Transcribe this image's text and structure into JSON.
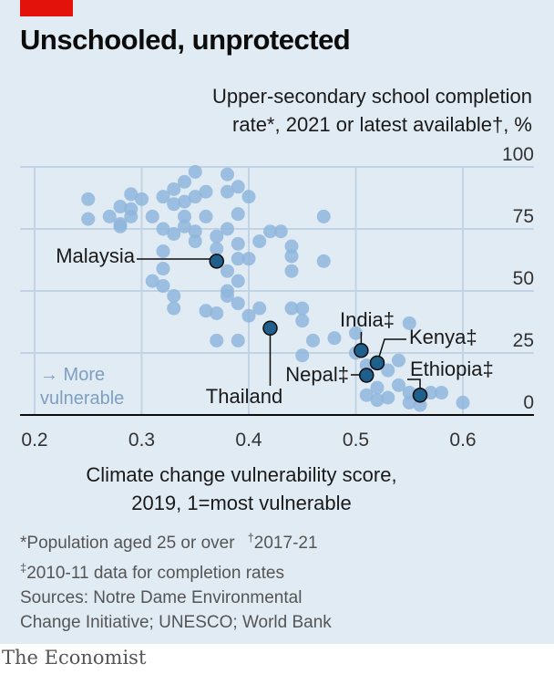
{
  "title": "Unschooled, unprotected",
  "accent_color": "#e3120b",
  "background_color": "#e1ebf4",
  "chart_data": {
    "type": "scatter",
    "title": "Unschooled, unprotected",
    "ylabel": "Upper-secondary school completion rate*, 2021 or latest available†, %",
    "xlabel": "Climate change vulnerability score, 2019, 1=most vulnerable",
    "xlim": [
      0.2,
      0.65
    ],
    "ylim": [
      0,
      100
    ],
    "x_ticks": [
      "0.2",
      "0.3",
      "0.4",
      "0.5",
      "0.6"
    ],
    "y_ticks": [
      "0",
      "25",
      "50",
      "75",
      "100"
    ],
    "grid": true,
    "annotation": "→ More vulnerable",
    "point_color": "#8fb6dc",
    "highlight_color": "#1f5f8b",
    "points": [
      [
        0.25,
        87
      ],
      [
        0.25,
        79
      ],
      [
        0.27,
        80
      ],
      [
        0.28,
        77
      ],
      [
        0.28,
        76
      ],
      [
        0.28,
        84
      ],
      [
        0.29,
        80
      ],
      [
        0.29,
        89
      ],
      [
        0.29,
        83
      ],
      [
        0.31,
        80
      ],
      [
        0.32,
        88
      ],
      [
        0.32,
        75
      ],
      [
        0.33,
        91
      ],
      [
        0.33,
        85
      ],
      [
        0.34,
        94
      ],
      [
        0.34,
        86
      ],
      [
        0.34,
        80
      ],
      [
        0.35,
        98
      ],
      [
        0.35,
        88
      ],
      [
        0.36,
        90
      ],
      [
        0.36,
        80
      ],
      [
        0.31,
        54
      ],
      [
        0.32,
        66
      ],
      [
        0.32,
        59
      ],
      [
        0.32,
        52
      ],
      [
        0.33,
        73
      ],
      [
        0.33,
        48
      ],
      [
        0.33,
        43
      ],
      [
        0.34,
        76
      ],
      [
        0.35,
        70
      ],
      [
        0.35,
        74
      ],
      [
        0.36,
        42
      ],
      [
        0.37,
        72
      ],
      [
        0.37,
        67
      ],
      [
        0.37,
        41
      ],
      [
        0.38,
        97
      ],
      [
        0.38,
        90
      ],
      [
        0.38,
        75
      ],
      [
        0.38,
        58
      ],
      [
        0.39,
        92
      ],
      [
        0.39,
        81
      ],
      [
        0.39,
        69
      ],
      [
        0.39,
        63
      ],
      [
        0.39,
        54
      ],
      [
        0.4,
        88
      ],
      [
        0.4,
        63
      ],
      [
        0.41,
        70
      ],
      [
        0.42,
        74
      ],
      [
        0.43,
        74
      ],
      [
        0.44,
        64
      ],
      [
        0.44,
        58
      ],
      [
        0.44,
        68
      ],
      [
        0.44,
        43
      ],
      [
        0.45,
        43
      ],
      [
        0.45,
        38
      ],
      [
        0.45,
        24
      ],
      [
        0.46,
        30
      ],
      [
        0.47,
        80
      ],
      [
        0.47,
        62
      ],
      [
        0.37,
        30
      ],
      [
        0.38,
        50
      ],
      [
        0.38,
        48
      ],
      [
        0.39,
        45
      ],
      [
        0.39,
        30
      ],
      [
        0.4,
        40
      ],
      [
        0.41,
        43
      ],
      [
        0.48,
        31
      ],
      [
        0.5,
        33
      ],
      [
        0.5,
        25
      ],
      [
        0.51,
        20
      ],
      [
        0.51,
        8
      ],
      [
        0.52,
        11
      ],
      [
        0.52,
        6
      ],
      [
        0.53,
        18
      ],
      [
        0.53,
        7
      ],
      [
        0.54,
        22
      ],
      [
        0.54,
        12
      ],
      [
        0.55,
        37
      ],
      [
        0.55,
        5
      ],
      [
        0.55,
        9
      ],
      [
        0.56,
        4
      ],
      [
        0.57,
        9
      ],
      [
        0.58,
        9
      ],
      [
        0.6,
        5
      ],
      [
        0.3,
        87
      ]
    ],
    "labeled_points": [
      {
        "label": "Malaysia",
        "x": 0.37,
        "y": 62
      },
      {
        "label": "Thailand",
        "x": 0.42,
        "y": 35
      },
      {
        "label": "India‡",
        "x": 0.505,
        "y": 26
      },
      {
        "label": "Kenya‡",
        "x": 0.52,
        "y": 21
      },
      {
        "label": "Nepal‡",
        "x": 0.51,
        "y": 16
      },
      {
        "label": "Ethiopia‡",
        "x": 0.56,
        "y": 8
      }
    ]
  },
  "notes": {
    "line1a": "*Population aged 25 or over",
    "dagger": "†",
    "line1b": "2017-21",
    "ddagger": "‡",
    "line2": "2010-11 data for completion rates",
    "line3": "Sources: Notre Dame Environmental",
    "line4": "Change Initiative; UNESCO; World Bank"
  },
  "ytitle": {
    "line1": "Upper-secondary school completion",
    "line2": "rate*, 2021 or latest available†, %"
  },
  "xtitle": {
    "line1": "Climate change vulnerability score,",
    "line2": "2019, 1=most vulnerable"
  },
  "arrow_label": {
    "line1": "→ More",
    "line2": "vulnerable"
  },
  "footer": "The Economist"
}
